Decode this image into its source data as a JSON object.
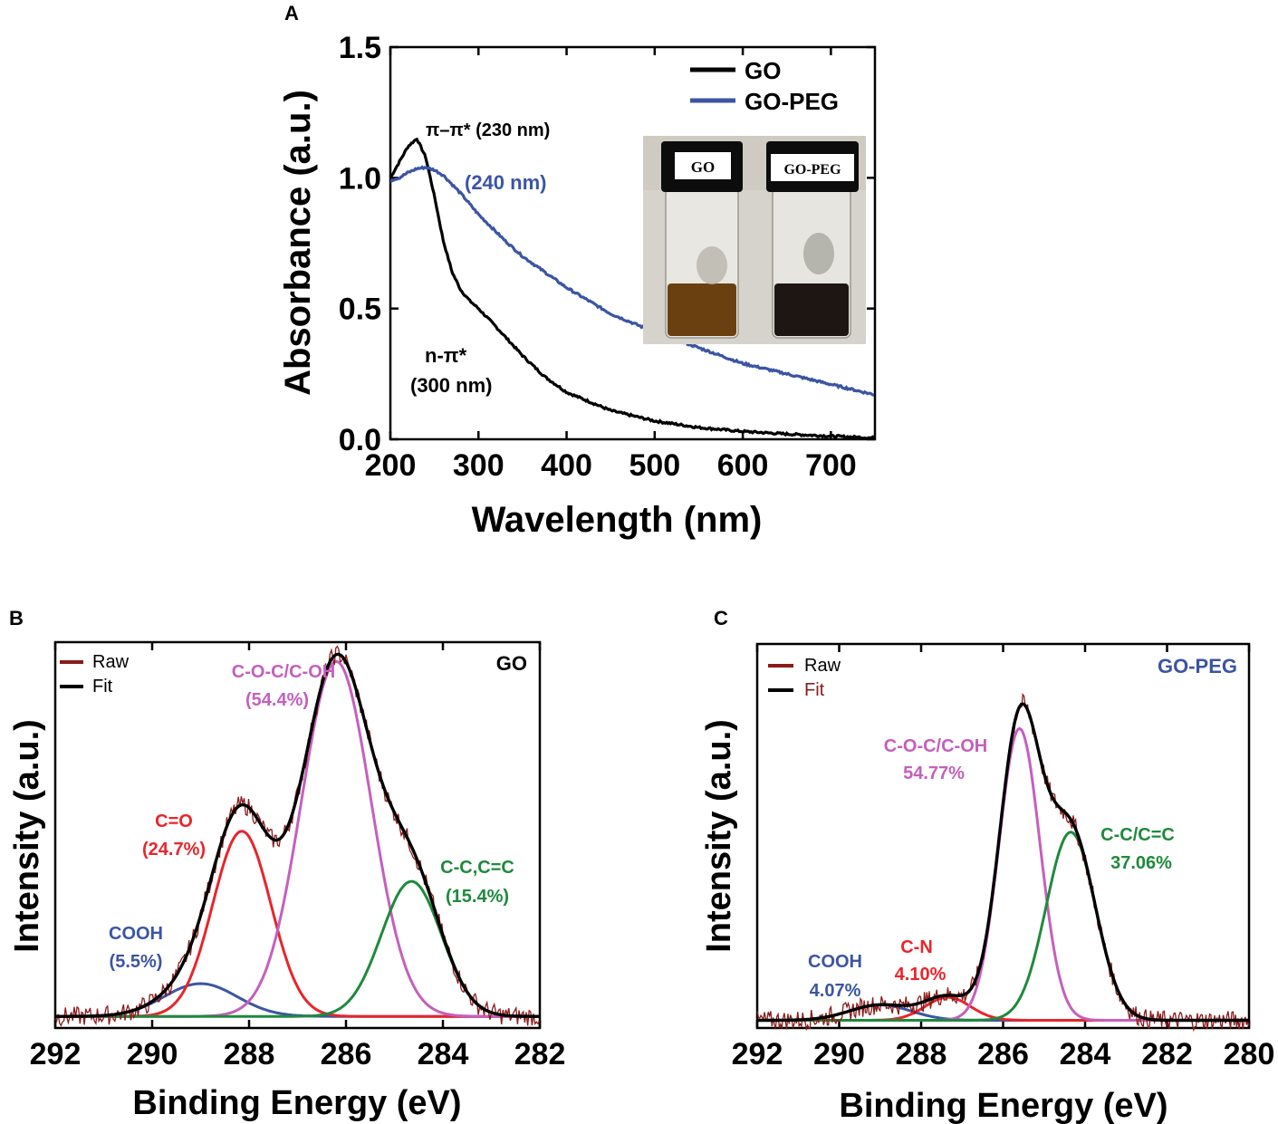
{
  "chart_data": [
    {
      "type": "line",
      "panel_label": "A",
      "xlabel": "Wavelength (nm)",
      "ylabel": "Absorbance (a.u.)",
      "xlim": [
        200,
        750
      ],
      "ylim": [
        0,
        1.5
      ],
      "xticks": [
        200,
        300,
        400,
        500,
        600,
        700
      ],
      "yticks": [
        "0.0",
        "0.5",
        "1.0",
        "1.5"
      ],
      "legend_position": "top-right",
      "series": [
        {
          "name": "GO",
          "color": "#000000",
          "x": [
            200,
            210,
            220,
            230,
            240,
            250,
            260,
            270,
            280,
            290,
            300,
            320,
            350,
            375,
            400,
            450,
            500,
            550,
            600,
            650,
            700,
            750
          ],
          "y": [
            1.0,
            1.06,
            1.12,
            1.15,
            1.08,
            0.93,
            0.76,
            0.64,
            0.57,
            0.53,
            0.5,
            0.43,
            0.32,
            0.24,
            0.18,
            0.11,
            0.07,
            0.045,
            0.03,
            0.02,
            0.012,
            0.005
          ]
        },
        {
          "name": "GO-PEG",
          "color": "#3b55a3",
          "x": [
            200,
            210,
            220,
            230,
            240,
            250,
            260,
            280,
            300,
            330,
            350,
            400,
            450,
            500,
            550,
            600,
            650,
            700,
            750
          ],
          "y": [
            0.99,
            1.0,
            1.02,
            1.035,
            1.04,
            1.03,
            1.01,
            0.94,
            0.86,
            0.76,
            0.7,
            0.58,
            0.48,
            0.41,
            0.35,
            0.29,
            0.25,
            0.21,
            0.17
          ]
        }
      ],
      "annotations": [
        {
          "text": "π–π* (230 nm)",
          "color": "#000000"
        },
        {
          "text": "(240 nm)",
          "color": "#3b55a3"
        },
        {
          "text": "n-π*",
          "color": "#000000"
        },
        {
          "text": "(300 nm)",
          "color": "#000000"
        }
      ],
      "inset": {
        "labels": [
          "GO",
          "GO-PEG"
        ],
        "liquid_colors": [
          "#6a4010",
          "#1e1612"
        ]
      }
    },
    {
      "type": "line",
      "panel_label": "B",
      "sample_label": "GO",
      "xlabel": "Binding Energy (eV)",
      "ylabel": "Intensity (a.u.)",
      "xlim": [
        292,
        282
      ],
      "xticks": [
        292,
        290,
        288,
        286,
        284,
        282
      ],
      "legend": [
        "Raw",
        "Fit"
      ],
      "legend_colors": [
        "#8b1a1a",
        "#000000"
      ],
      "series": [
        {
          "name": "COOH",
          "color": "#3b55a3",
          "center": 289.0,
          "height": 0.085,
          "sigma": 0.75
        },
        {
          "name": "C=O",
          "color": "#e8252b",
          "center": 288.15,
          "height": 0.48,
          "sigma": 0.6
        },
        {
          "name": "C-O-C/C-OH",
          "color": "#c55fbd",
          "center": 286.2,
          "height": 0.92,
          "sigma": 0.72
        },
        {
          "name": "C-C,C=C",
          "color": "#1e8a3c",
          "center": 284.65,
          "height": 0.35,
          "sigma": 0.62
        }
      ],
      "annotations": [
        {
          "text": "C-O-C/C-OH",
          "color": "#c55fbd"
        },
        {
          "text": "(54.4%)",
          "color": "#c55fbd"
        },
        {
          "text": "C=O",
          "color": "#e8252b"
        },
        {
          "text": "(24.7%)",
          "color": "#e8252b"
        },
        {
          "text": "C-C,C=C",
          "color": "#1e8a3c"
        },
        {
          "text": "(15.4%)",
          "color": "#1e8a3c"
        },
        {
          "text": "COOH",
          "color": "#3b55a3"
        },
        {
          "text": "(5.5%)",
          "color": "#3b55a3"
        }
      ]
    },
    {
      "type": "line",
      "panel_label": "C",
      "sample_label": "GO-PEG",
      "sample_label_color": "#3b55a3",
      "xlabel": "Binding Energy (eV)",
      "ylabel": "Intensity (a.u.)",
      "xlim": [
        292,
        280
      ],
      "xticks": [
        292,
        290,
        288,
        286,
        284,
        282,
        280
      ],
      "legend": [
        "Raw",
        "Fit"
      ],
      "legend_colors": [
        "#8b1a1a",
        "#000000"
      ],
      "series": [
        {
          "name": "COOH",
          "color": "#3b55a3",
          "center": 289.0,
          "height": 0.04,
          "sigma": 0.75
        },
        {
          "name": "C-N",
          "color": "#e8252b",
          "center": 287.35,
          "height": 0.06,
          "sigma": 0.55
        },
        {
          "name": "C-O-C/C-OH",
          "color": "#c55fbd",
          "center": 285.6,
          "height": 0.76,
          "sigma": 0.5
        },
        {
          "name": "C-C/C=C",
          "color": "#1e8a3c",
          "center": 284.35,
          "height": 0.49,
          "sigma": 0.6
        }
      ],
      "annotations": [
        {
          "text": "C-O-C/C-OH",
          "color": "#c55fbd"
        },
        {
          "text": "54.77%",
          "color": "#c55fbd"
        },
        {
          "text": "C-C/C=C",
          "color": "#1e8a3c"
        },
        {
          "text": "37.06%",
          "color": "#1e8a3c"
        },
        {
          "text": "COOH",
          "color": "#3b55a3"
        },
        {
          "text": "4.07%",
          "color": "#3b55a3"
        },
        {
          "text": "C-N",
          "color": "#e8252b"
        },
        {
          "text": "4.10%",
          "color": "#e8252b"
        }
      ]
    }
  ]
}
